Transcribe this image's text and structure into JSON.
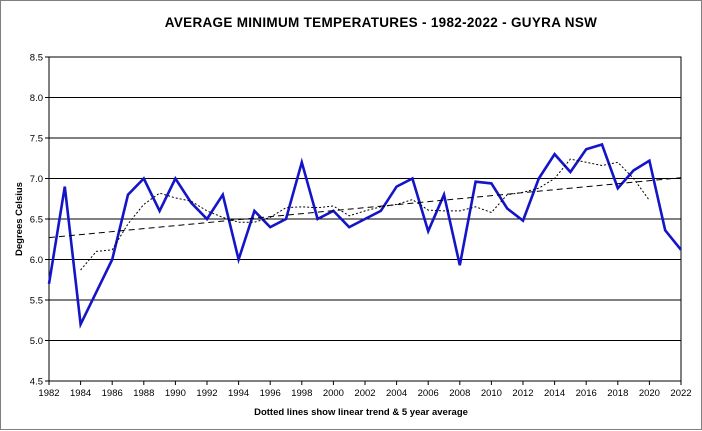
{
  "chart_data": {
    "type": "line",
    "title": "AVERAGE  MINIMUM TEMPERATURES  - 1982-2022  -  GUYRA  NSW",
    "xlabel": "Dotted lines show linear trend & 5 year average",
    "ylabel": "Degrees Celsius",
    "xlim": [
      1982,
      2022
    ],
    "ylim": [
      4.5,
      8.5
    ],
    "grid": {
      "horizontal": true,
      "vertical": false
    },
    "x_ticks": [
      1982,
      1984,
      1986,
      1988,
      1990,
      1992,
      1994,
      1996,
      1998,
      2000,
      2002,
      2004,
      2006,
      2008,
      2010,
      2012,
      2014,
      2016,
      2018,
      2020,
      2022
    ],
    "y_ticks": [
      4.5,
      5.0,
      5.5,
      6.0,
      6.5,
      7.0,
      7.5,
      8.0,
      8.5
    ],
    "series": [
      {
        "style": "solid",
        "color": "#1414c8",
        "x": [
          1982,
          1983,
          1984,
          1985,
          1986,
          1987,
          1988,
          1989,
          1990,
          1991,
          1992,
          1993,
          1994,
          1995,
          1996,
          1997,
          1998,
          1999,
          2000,
          2001,
          2002,
          2003,
          2004,
          2005,
          2006,
          2007,
          2008,
          2009,
          2010,
          2011,
          2012,
          2013,
          2014,
          2015,
          2016,
          2017,
          2018,
          2019,
          2020,
          2021,
          2022
        ],
        "values": [
          5.7,
          6.9,
          5.2,
          5.6,
          6.0,
          6.8,
          7.0,
          6.6,
          7.0,
          6.7,
          6.5,
          6.8,
          6.0,
          6.6,
          6.4,
          6.5,
          7.2,
          6.5,
          6.6,
          6.4,
          6.5,
          6.6,
          6.9,
          7.0,
          6.35,
          6.8,
          5.93,
          6.96,
          6.94,
          6.63,
          6.48,
          7.0,
          7.3,
          7.08,
          7.36,
          7.42,
          6.88,
          7.1,
          7.22,
          6.36,
          6.12
        ]
      },
      {
        "style": "dotted",
        "color": "#000000",
        "x": [
          1984,
          1985,
          1986,
          1987,
          1988,
          1989,
          1990,
          1991,
          1992,
          1993,
          1994,
          1995,
          1996,
          1997,
          1998,
          1999,
          2000,
          2001,
          2002,
          2003,
          2004,
          2005,
          2006,
          2007,
          2008,
          2009,
          2010,
          2011,
          2012,
          2013,
          2014,
          2015,
          2016,
          2017,
          2018,
          2019,
          2020
        ],
        "values": [
          5.87,
          6.1,
          6.12,
          6.44,
          6.68,
          6.82,
          6.76,
          6.72,
          6.6,
          6.52,
          6.46,
          6.46,
          6.52,
          6.64,
          6.65,
          6.64,
          6.66,
          6.54,
          6.6,
          6.65,
          6.68,
          6.74,
          6.61,
          6.6,
          6.6,
          6.65,
          6.58,
          6.8,
          6.83,
          6.88,
          7.0,
          7.24,
          7.2,
          7.16,
          7.2,
          7.0,
          6.73
        ]
      },
      {
        "style": "dashed",
        "color": "#000000",
        "x": [
          1982,
          2022
        ],
        "values": [
          6.27,
          7.01
        ]
      }
    ]
  }
}
